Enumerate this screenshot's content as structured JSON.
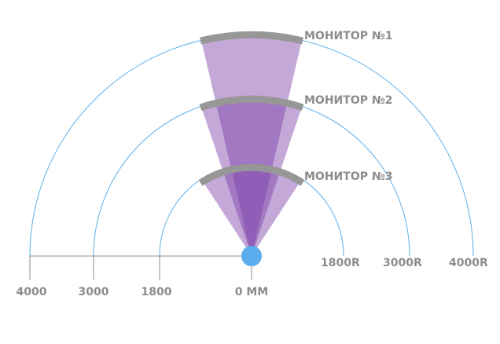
{
  "monitors": [
    {
      "label": "МОНИТОР №1"
    },
    {
      "label": "МОНИТОР №2"
    },
    {
      "label": "МОНИТОР №3"
    }
  ],
  "curvatures": [
    "1800R",
    "3000R",
    "4000R"
  ],
  "scale": [
    "4000",
    "3000",
    "1800",
    "0 MM"
  ]
}
